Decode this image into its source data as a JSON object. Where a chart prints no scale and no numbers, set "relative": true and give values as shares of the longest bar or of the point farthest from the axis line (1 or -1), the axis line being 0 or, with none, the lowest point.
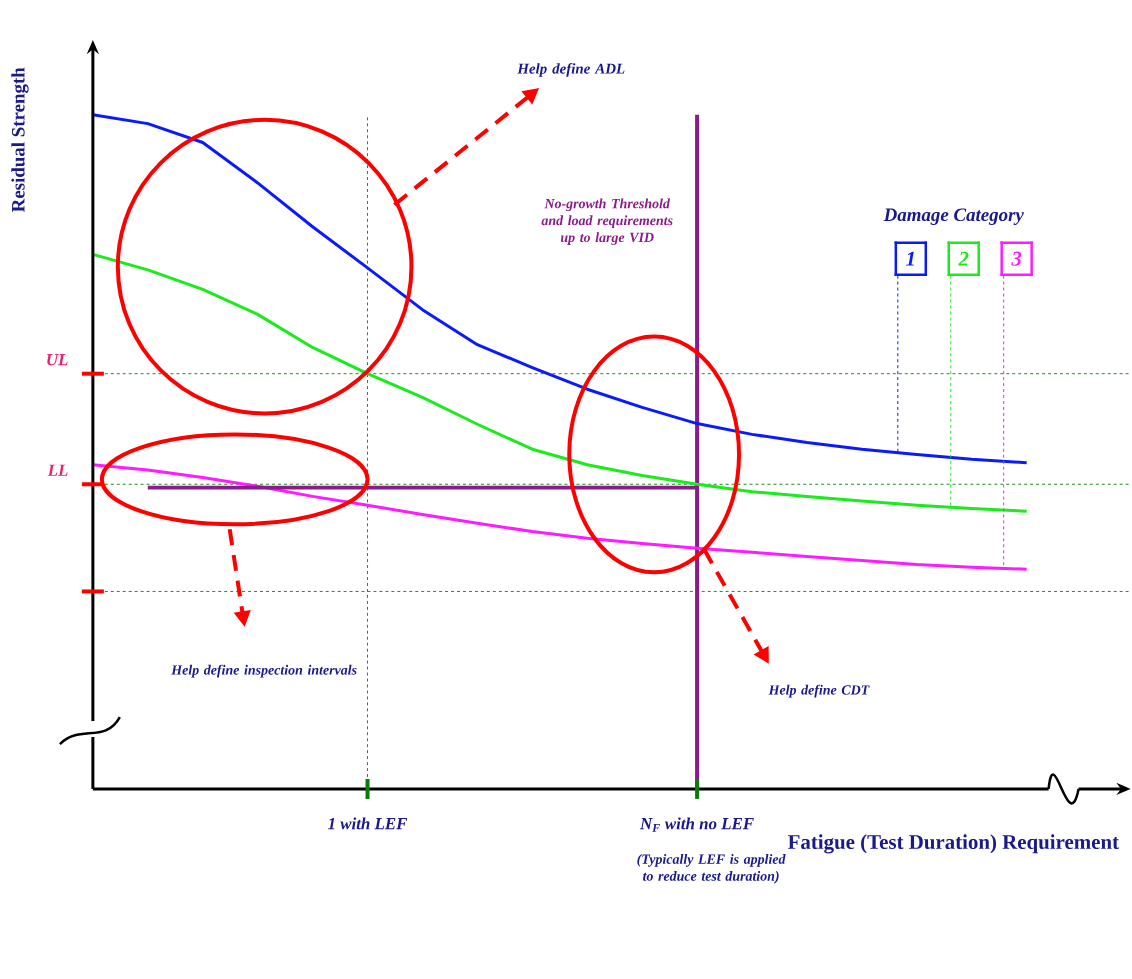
{
  "chart_data": {
    "type": "line",
    "relative": true,
    "xlabel": "Fatigue (Test Duration) Requirement",
    "ylabel": "Residual Strength",
    "legend_title": "Damage Category",
    "legend": "top right",
    "categories": [
      null,
      null,
      null,
      null,
      null,
      "1 with LEF",
      null,
      null,
      null,
      null,
      null,
      "N$_{F}$ with no LEF",
      null,
      null,
      null,
      null,
      null,
      null
    ],
    "series": [
      {
        "name": "1",
        "color": "#0a1aff",
        "values": [
          1.0,
          0.987,
          0.959,
          0.899,
          0.834,
          0.773,
          0.711,
          0.659,
          0.625,
          0.593,
          0.566,
          0.542,
          0.526,
          0.514,
          0.504,
          0.496,
          0.489,
          0.484
        ]
      },
      {
        "name": "2",
        "color": "#1aeb1a",
        "values": [
          0.793,
          0.77,
          0.741,
          0.704,
          0.655,
          0.616,
          0.581,
          0.541,
          0.504,
          0.481,
          0.465,
          0.452,
          0.441,
          0.434,
          0.427,
          0.421,
          0.416,
          0.412
        ]
      },
      {
        "name": "3",
        "color": "#ff1aff",
        "values": [
          0.481,
          0.473,
          0.462,
          0.449,
          0.434,
          0.421,
          0.407,
          0.394,
          0.382,
          0.372,
          0.364,
          0.357,
          0.351,
          0.345,
          0.339,
          0.333,
          0.329,
          0.326
        ]
      },
      {
        "type": "line",
        "color": "#8b1a8b",
        "values": [
          null,
          0.447,
          0.447,
          0.447,
          0.447,
          0.447,
          0.447,
          0.447,
          0.447,
          0.447,
          0.447,
          0.447,
          null,
          null,
          null,
          null,
          null,
          null
        ]
      }
    ],
    "ref_lines": [
      {
        "axis": "y",
        "value": 0.616,
        "label": "UL",
        "color": "#228b22",
        "line_style": "dashed"
      },
      {
        "axis": "y",
        "value": 0.452,
        "label": "LL",
        "color": "#228b22",
        "line_style": "dashed"
      },
      {
        "axis": "y",
        "value": 0.293,
        "label": null,
        "color": "#228b22",
        "line_style": "dashed"
      },
      {
        "axis": "x",
        "value": "1 with LEF",
        "label": null,
        "color": "#228b22",
        "line_style": "dashed"
      },
      {
        "axis": "x",
        "value": "N$_{F}$ with no LEF",
        "label": null,
        "color": "#8b1a8b",
        "line_style": "solid"
      }
    ],
    "annotations": [
      "Help define ADL",
      "No-growth Threshold and load requirements up to large VID",
      "Help define inspection intervals",
      "Help define CDT",
      "(Typically LEF is applied to reduce test duration)"
    ]
  }
}
